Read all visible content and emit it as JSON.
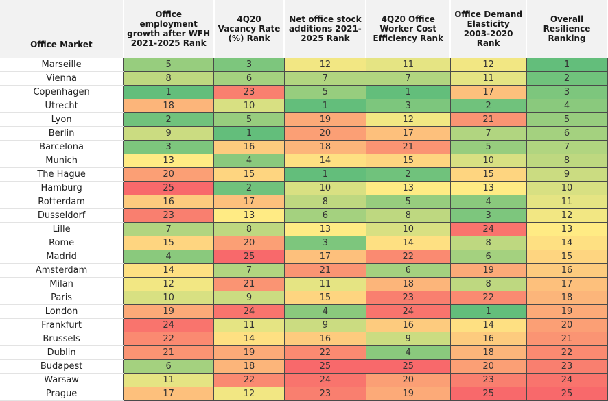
{
  "chart_data": {
    "type": "table",
    "columns": [
      "Office Market",
      "Office employment growth after WFH 2021-2025 Rank",
      "4Q20 Vacancy Rate (%) Rank",
      "Net office stock additions 2021-2025 Rank",
      "4Q20 Office Worker Cost Efficiency Rank",
      "Office Demand Elasticity 2003-2020 Rank",
      "Overall Resilience Ranking"
    ],
    "rows": [
      {
        "market": "Marseille",
        "values": [
          5,
          3,
          12,
          11,
          12,
          1
        ]
      },
      {
        "market": "Vienna",
        "values": [
          8,
          6,
          7,
          7,
          11,
          2
        ]
      },
      {
        "market": "Copenhagen",
        "values": [
          1,
          23,
          5,
          1,
          17,
          3
        ]
      },
      {
        "market": "Utrecht",
        "values": [
          18,
          10,
          1,
          3,
          2,
          4
        ]
      },
      {
        "market": "Lyon",
        "values": [
          2,
          5,
          19,
          12,
          21,
          5
        ]
      },
      {
        "market": "Berlin",
        "values": [
          9,
          1,
          20,
          17,
          7,
          6
        ]
      },
      {
        "market": "Barcelona",
        "values": [
          3,
          16,
          18,
          21,
          5,
          7
        ]
      },
      {
        "market": "Munich",
        "values": [
          13,
          4,
          14,
          15,
          10,
          8
        ]
      },
      {
        "market": "The Hague",
        "values": [
          20,
          15,
          1,
          2,
          15,
          9
        ]
      },
      {
        "market": "Hamburg",
        "values": [
          25,
          2,
          10,
          13,
          13,
          10
        ]
      },
      {
        "market": "Rotterdam",
        "values": [
          16,
          17,
          8,
          5,
          4,
          11
        ]
      },
      {
        "market": "Dusseldorf",
        "values": [
          23,
          13,
          6,
          8,
          3,
          12
        ]
      },
      {
        "market": "Lille",
        "values": [
          7,
          8,
          13,
          10,
          24,
          13
        ]
      },
      {
        "market": "Rome",
        "values": [
          15,
          20,
          3,
          14,
          8,
          14
        ]
      },
      {
        "market": "Madrid",
        "values": [
          4,
          25,
          17,
          22,
          6,
          15
        ]
      },
      {
        "market": "Amsterdam",
        "values": [
          14,
          7,
          21,
          6,
          19,
          16
        ]
      },
      {
        "market": "Milan",
        "values": [
          12,
          21,
          11,
          18,
          8,
          17
        ]
      },
      {
        "market": "Paris",
        "values": [
          10,
          9,
          15,
          23,
          22,
          18
        ]
      },
      {
        "market": "London",
        "values": [
          19,
          24,
          4,
          24,
          1,
          19
        ]
      },
      {
        "market": "Frankfurt",
        "values": [
          24,
          11,
          9,
          16,
          14,
          20
        ]
      },
      {
        "market": "Brussels",
        "values": [
          22,
          14,
          16,
          9,
          16,
          21
        ]
      },
      {
        "market": "Dublin",
        "values": [
          21,
          19,
          22,
          4,
          18,
          22
        ]
      },
      {
        "market": "Budapest",
        "values": [
          6,
          18,
          25,
          25,
          20,
          23
        ]
      },
      {
        "market": "Warsaw",
        "values": [
          11,
          22,
          24,
          20,
          23,
          24
        ]
      },
      {
        "market": "Prague",
        "values": [
          17,
          12,
          23,
          19,
          25,
          25
        ]
      }
    ],
    "color_scale": {
      "best": "#63be7b",
      "mid": "#ffeb84",
      "worst": "#f8696b",
      "min_rank": 1,
      "max_rank": 25
    }
  }
}
